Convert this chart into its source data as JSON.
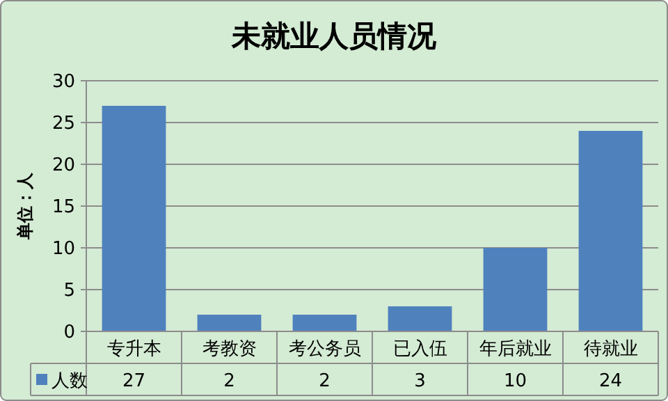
{
  "chart_data": {
    "type": "bar",
    "title": "未就业人员情况",
    "ylabel": "单位：人",
    "categories": [
      "专升本",
      "考教资",
      "考公务员",
      "已入伍",
      "年后就业",
      "待就业"
    ],
    "series": [
      {
        "name": "人数",
        "color": "#4f81bd",
        "values": [
          27,
          2,
          2,
          3,
          10,
          24
        ]
      }
    ],
    "ylim": [
      0,
      30
    ],
    "yticks": [
      0,
      5,
      10,
      15,
      20,
      25,
      30
    ],
    "grid": "y",
    "data_labels": true,
    "legend": "bottom"
  }
}
